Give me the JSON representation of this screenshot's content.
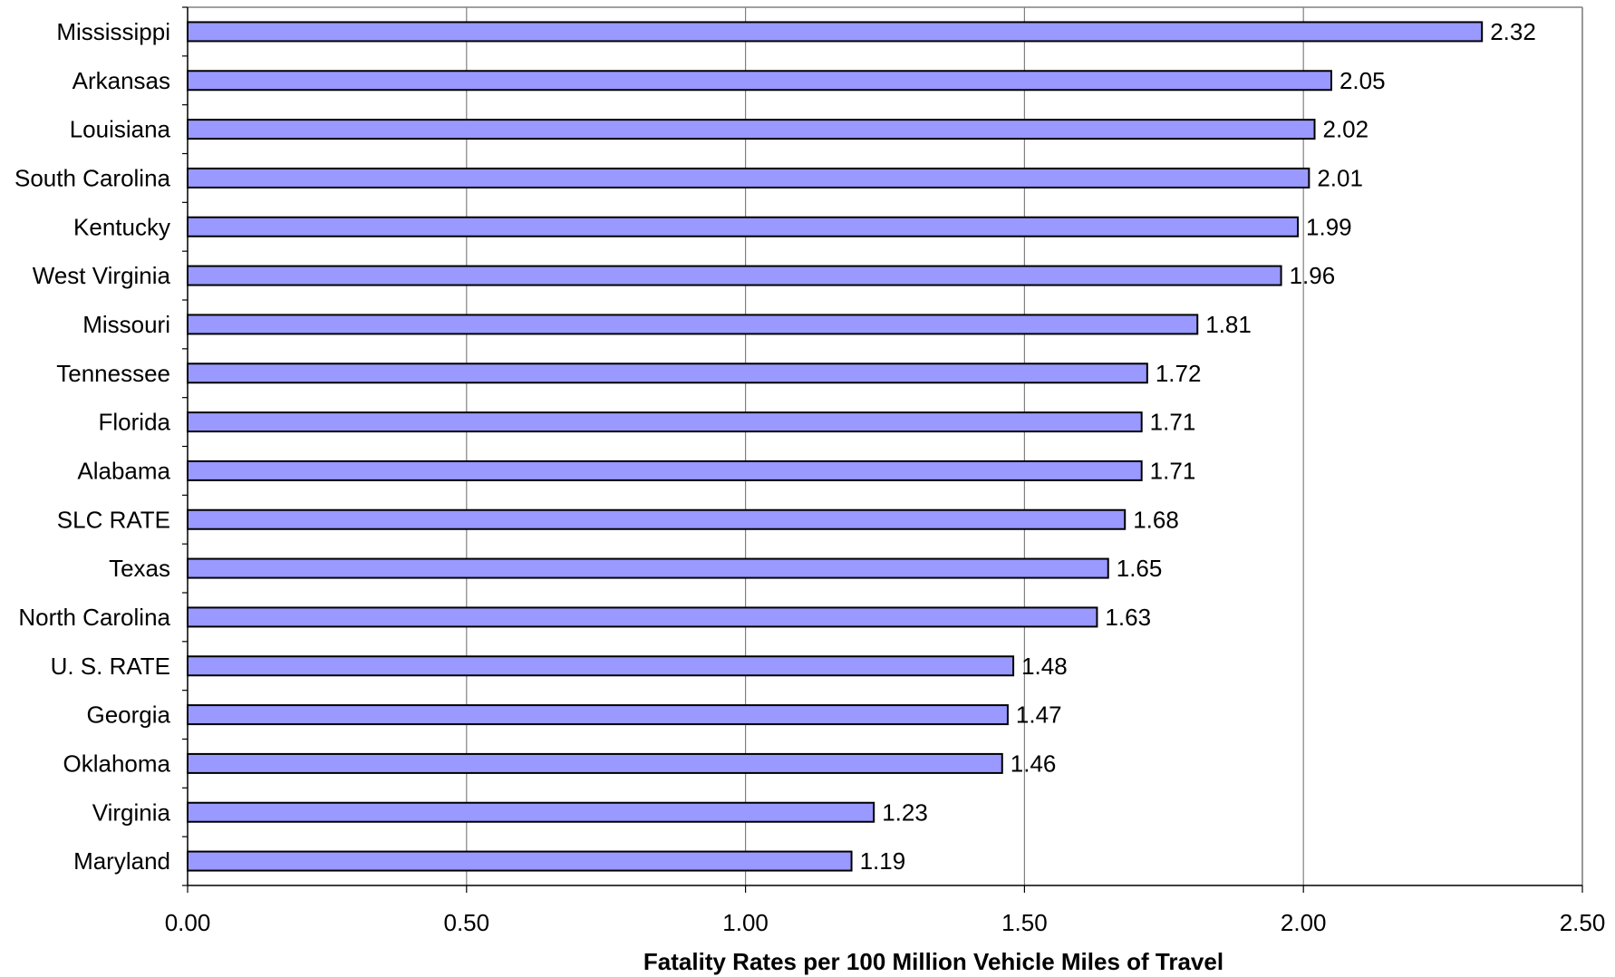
{
  "chart_data": {
    "type": "bar",
    "orientation": "horizontal",
    "categories": [
      "Mississippi",
      "Arkansas",
      "Louisiana",
      "South Carolina",
      "Kentucky",
      "West Virginia",
      "Missouri",
      "Tennessee",
      "Florida",
      "Alabama",
      "SLC RATE",
      "Texas",
      "North Carolina",
      "U. S. RATE",
      "Georgia",
      "Oklahoma",
      "Virginia",
      "Maryland"
    ],
    "values": [
      2.32,
      2.05,
      2.02,
      2.01,
      1.99,
      1.96,
      1.81,
      1.72,
      1.71,
      1.71,
      1.68,
      1.65,
      1.63,
      1.48,
      1.47,
      1.46,
      1.23,
      1.19
    ],
    "value_labels": [
      "2.32",
      "2.05",
      "2.02",
      "2.01",
      "1.99",
      "1.96",
      "1.81",
      "1.72",
      "1.71",
      "1.71",
      "1.68",
      "1.65",
      "1.63",
      "1.48",
      "1.47",
      "1.46",
      "1.23",
      "1.19"
    ],
    "xlabel": "Fatality Rates per 100 Million Vehicle Miles of Travel",
    "ylabel": "",
    "title": "",
    "xlim": [
      0,
      2.5
    ],
    "xticks": [
      0,
      0.5,
      1.0,
      1.5,
      2.0,
      2.5
    ],
    "xtick_labels": [
      "0.00",
      "0.50",
      "1.00",
      "1.50",
      "2.00",
      "2.50"
    ],
    "grid": "vertical",
    "legend": "none",
    "colors": {
      "bar_fill": "#9999ff",
      "bar_stroke": "#000000",
      "grid": "#808080",
      "frame": "#808080"
    }
  }
}
